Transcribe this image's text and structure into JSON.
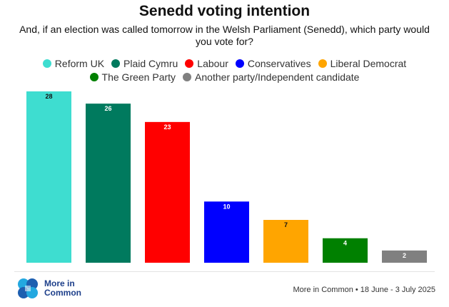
{
  "header": {
    "title": "Senedd voting intention",
    "subtitle": "And, if an election was called tomorrow in the Welsh Parliament (Senedd), which party would you vote for?"
  },
  "legend": {
    "rows": [
      [
        {
          "label": "Reform UK",
          "color": "#3eddd0"
        },
        {
          "label": "Plaid Cymru",
          "color": "#007a5e"
        },
        {
          "label": "Labour",
          "color": "#ff0000"
        },
        {
          "label": "Conservatives",
          "color": "#0000ff"
        },
        {
          "label": "Liberal Democrat",
          "color": "#ffa500"
        }
      ],
      [
        {
          "label": "The Green Party",
          "color": "#008000"
        },
        {
          "label": "Another party/Independent candidate",
          "color": "#808080"
        }
      ]
    ]
  },
  "chart_data": {
    "type": "bar",
    "title": "Senedd voting intention",
    "categories": [
      "Reform UK",
      "Plaid Cymru",
      "Labour",
      "Conservatives",
      "Liberal Democrat",
      "The Green Party",
      "Another party/Independent candidate"
    ],
    "values": [
      28,
      26,
      23,
      10,
      7,
      4,
      2
    ],
    "colors": [
      "#3eddd0",
      "#007a5e",
      "#ff0000",
      "#0000ff",
      "#ffa500",
      "#008000",
      "#808080"
    ],
    "label_colors": [
      "#111111",
      "#ffffff",
      "#ffffff",
      "#ffffff",
      "#111111",
      "#ffffff",
      "#ffffff"
    ],
    "ylim": [
      0,
      28
    ],
    "grid": false,
    "legend_position": "top"
  },
  "footer": {
    "logo_line1": "More in",
    "logo_line2": "Common",
    "source": "More in Common • 18 June - 3 July 2025"
  }
}
